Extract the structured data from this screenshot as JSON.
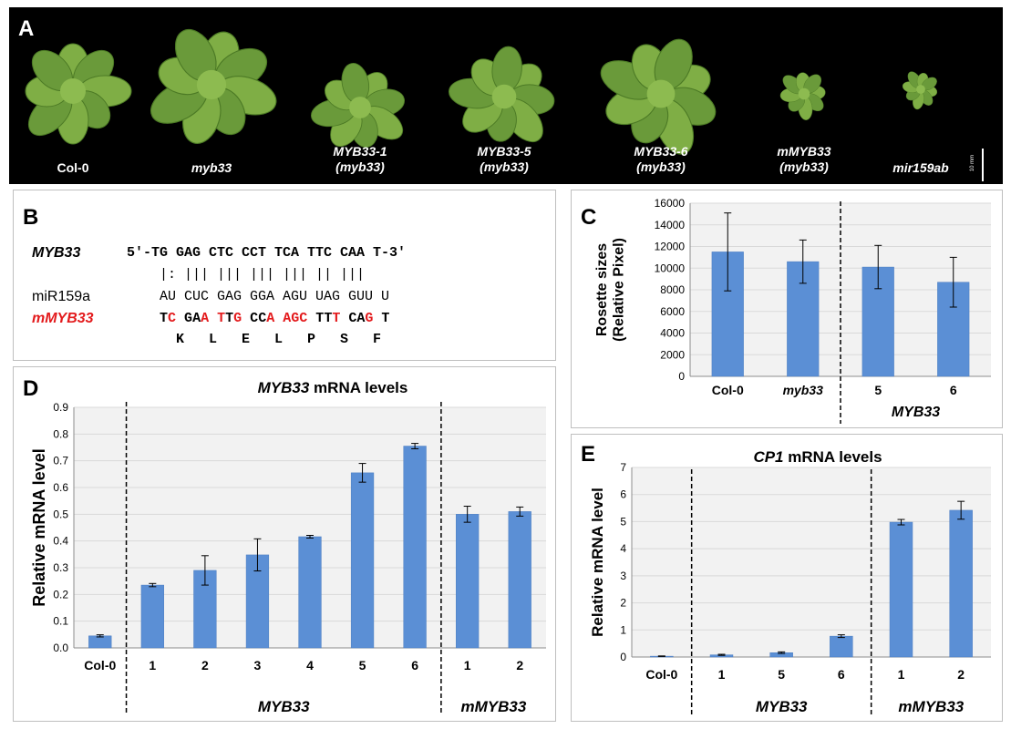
{
  "panel_a": {
    "letter": "A",
    "scale_label": "10 mm",
    "plants": [
      {
        "line1": "Col-0",
        "line2": "",
        "italic": false
      },
      {
        "line1": "myb33",
        "line2": "",
        "italic": true
      },
      {
        "line1": "MYB33-1",
        "line2": "(myb33)",
        "italic": true
      },
      {
        "line1": "MYB33-5",
        "line2": "(myb33)",
        "italic": true
      },
      {
        "line1": "MYB33-6",
        "line2": "(myb33)",
        "italic": true
      },
      {
        "line1": "mMYB33",
        "line2": "(myb33)",
        "italic": true
      },
      {
        "line1": "mir159ab",
        "line2": "",
        "italic": true
      }
    ]
  },
  "panel_b": {
    "letter": "B",
    "row1_label": "MYB33",
    "row1_seq": "5′-TG GAG CTC CCT TCA TTC CAA T-3′",
    "pairing": "|: ||| ||| ||| ||| || |||",
    "row2_label": "miR159a",
    "row2_seq": "AU CUC GAG GGA AGU UAG GUU U",
    "row3_label": "mMYB33",
    "row3_seq": "TC GAA TTG CCA AGC TTT CAG T",
    "amino_acids": "K L E L P S F"
  },
  "chart_data": [
    {
      "panel": "C",
      "type": "bar",
      "title": "",
      "ylabel": "Rosette sizes (Relative Pixel)",
      "categories": [
        "Col-0",
        "myb33",
        "5",
        "6"
      ],
      "values": [
        11500,
        10600,
        10100,
        8700
      ],
      "errors": [
        3600,
        2000,
        2000,
        2300
      ],
      "ylim": [
        0,
        16000
      ],
      "yticks": [
        "0",
        "2000",
        "4000",
        "6000",
        "8000",
        "10000",
        "12000",
        "14000",
        "16000"
      ],
      "group_label": "MYB33",
      "grid": true
    },
    {
      "panel": "D",
      "type": "bar",
      "title": "MYB33 mRNA levels",
      "ylabel": "Relative mRNA level",
      "categories": [
        "Col-0",
        "1",
        "2",
        "3",
        "4",
        "5",
        "6",
        "1",
        "2"
      ],
      "values": [
        0.045,
        0.235,
        0.29,
        0.348,
        0.416,
        0.655,
        0.755,
        0.5,
        0.51
      ],
      "errors": [
        0.004,
        0.006,
        0.055,
        0.06,
        0.005,
        0.035,
        0.01,
        0.03,
        0.017
      ],
      "ylim": [
        0,
        0.9
      ],
      "yticks": [
        "0.0",
        "0.1",
        "0.2",
        "0.3",
        "0.4",
        "0.5",
        "0.6",
        "0.7",
        "0.8",
        "0.9"
      ],
      "group_labels": [
        "MYB33",
        "mMYB33"
      ],
      "grid": true
    },
    {
      "panel": "E",
      "type": "bar",
      "title": "CP1 mRNA levels",
      "ylabel": "Relative mRNA level",
      "categories": [
        "Col-0",
        "1",
        "5",
        "6",
        "1",
        "2"
      ],
      "values": [
        0.03,
        0.08,
        0.16,
        0.77,
        4.98,
        5.42
      ],
      "errors": [
        0.01,
        0.02,
        0.03,
        0.05,
        0.1,
        0.33
      ],
      "ylim": [
        0,
        7
      ],
      "yticks": [
        "0",
        "1",
        "2",
        "3",
        "4",
        "5",
        "6",
        "7"
      ],
      "group_labels": [
        "MYB33",
        "mMYB33"
      ],
      "grid": true
    }
  ],
  "colors": {
    "bar": "#5b8fd5",
    "bar_edge": "#4a7cc0",
    "red": "#e31a1c",
    "grid": "#d9d9d9",
    "plot_bg": "#f2f2f2"
  }
}
